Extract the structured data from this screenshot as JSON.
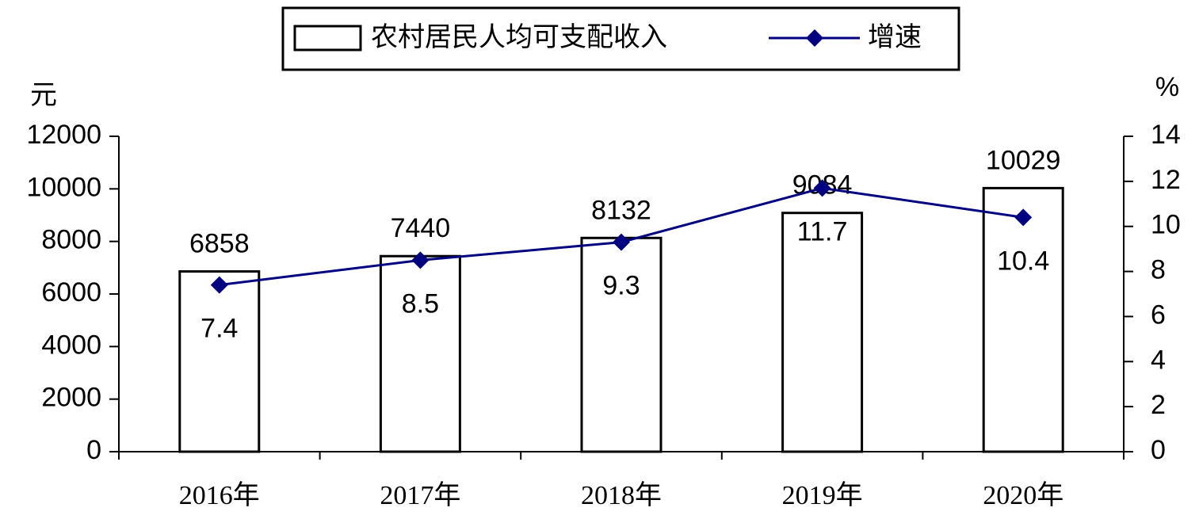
{
  "chart_data": {
    "type": "bar",
    "categories": [
      "2016年",
      "2017年",
      "2018年",
      "2019年",
      "2020年"
    ],
    "series": [
      {
        "name": "农村居民人均可支配收入",
        "type": "bar",
        "color": "#ffffff",
        "values": [
          6858,
          7440,
          8132,
          9084,
          10029
        ]
      },
      {
        "name": "增速",
        "type": "line",
        "color": "#000080",
        "axis": "y2",
        "values": [
          7.4,
          8.5,
          9.3,
          11.7,
          10.4
        ]
      }
    ],
    "y_label": "元",
    "y2_label": "%",
    "ylim": [
      0,
      12000
    ],
    "yticks": [
      0,
      2000,
      4000,
      6000,
      8000,
      10000,
      12000
    ],
    "y2lim": [
      0,
      14
    ],
    "y2ticks": [
      0,
      2,
      4,
      6,
      8,
      10,
      12,
      14
    ],
    "grid": false
  }
}
